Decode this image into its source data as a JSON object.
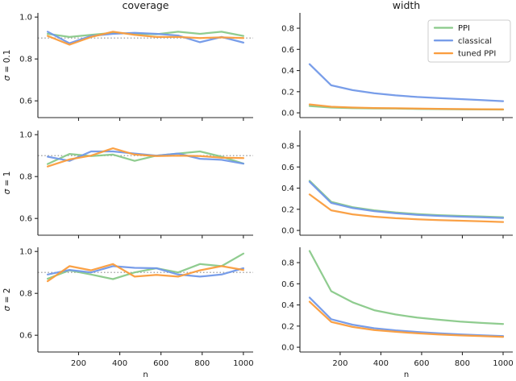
{
  "figure": {
    "background": "#ffffff",
    "text_color": "#1a1a1a",
    "spine_color": "#262626"
  },
  "chart_data": {
    "type": "line",
    "grid": false,
    "xlabel": "n",
    "x": [
      50,
      156,
      261,
      367,
      472,
      578,
      683,
      789,
      894,
      1000
    ],
    "x_ticks": [
      200,
      400,
      600,
      800,
      1000
    ],
    "xlim": [
      2.5,
      1047.5
    ],
    "legend": {
      "position": "upper right of width row 1 panel",
      "entries": [
        "PPI",
        "classical",
        "tuned PPI"
      ],
      "border_color": "#cccccc"
    },
    "series_order": [
      "PPI",
      "classical",
      "tuned PPI"
    ],
    "colors": {
      "PPI": "#89c989",
      "classical": "#7198e8",
      "tuned PPI": "#fa9c3c",
      "reference_line": "#8c8c8c"
    },
    "columns": [
      {
        "key": "coverage",
        "title": "coverage",
        "ylim": [
          0.52,
          1.02
        ],
        "yticks": [
          0.6,
          0.8,
          1.0
        ],
        "ref_line": 0.9
      },
      {
        "key": "width",
        "title": "width",
        "ylim": [
          -0.045,
          0.945
        ],
        "yticks": [
          0.0,
          0.2,
          0.4,
          0.6,
          0.8
        ],
        "ref_line": null
      }
    ],
    "rows": [
      {
        "label": "σ = 0.1",
        "coverage": {
          "PPI": [
            0.92,
            0.905,
            0.915,
            0.925,
            0.92,
            0.918,
            0.93,
            0.92,
            0.93,
            0.91
          ],
          "classical": [
            0.93,
            0.875,
            0.91,
            0.92,
            0.925,
            0.92,
            0.912,
            0.88,
            0.905,
            0.878
          ],
          "tuned PPI": [
            0.91,
            0.868,
            0.905,
            0.93,
            0.915,
            0.905,
            0.905,
            0.9,
            0.903,
            0.9
          ]
        },
        "width": {
          "PPI": [
            0.065,
            0.05,
            0.045,
            0.042,
            0.04,
            0.037,
            0.035,
            0.033,
            0.032,
            0.031
          ],
          "classical": [
            0.46,
            0.26,
            0.215,
            0.185,
            0.165,
            0.15,
            0.14,
            0.13,
            0.12,
            0.11
          ],
          "tuned PPI": [
            0.08,
            0.058,
            0.05,
            0.046,
            0.043,
            0.04,
            0.038,
            0.036,
            0.034,
            0.033
          ]
        }
      },
      {
        "label": "σ = 1",
        "coverage": {
          "PPI": [
            0.86,
            0.908,
            0.898,
            0.905,
            0.875,
            0.9,
            0.91,
            0.92,
            0.895,
            0.862
          ],
          "classical": [
            0.895,
            0.875,
            0.92,
            0.92,
            0.91,
            0.9,
            0.91,
            0.885,
            0.88,
            0.862
          ],
          "tuned PPI": [
            0.848,
            0.882,
            0.9,
            0.935,
            0.905,
            0.898,
            0.9,
            0.898,
            0.89,
            0.888
          ]
        },
        "width": {
          "PPI": [
            0.47,
            0.27,
            0.22,
            0.19,
            0.17,
            0.155,
            0.145,
            0.138,
            0.132,
            0.125
          ],
          "classical": [
            0.46,
            0.26,
            0.212,
            0.183,
            0.163,
            0.148,
            0.138,
            0.13,
            0.124,
            0.118
          ],
          "tuned PPI": [
            0.34,
            0.19,
            0.152,
            0.13,
            0.116,
            0.106,
            0.098,
            0.092,
            0.086,
            0.08
          ]
        }
      },
      {
        "label": "σ = 2",
        "coverage": {
          "PPI": [
            0.87,
            0.91,
            0.89,
            0.868,
            0.9,
            0.92,
            0.9,
            0.94,
            0.93,
            0.99
          ],
          "classical": [
            0.89,
            0.912,
            0.9,
            0.93,
            0.922,
            0.92,
            0.89,
            0.88,
            0.89,
            0.92
          ],
          "tuned PPI": [
            0.858,
            0.93,
            0.91,
            0.94,
            0.88,
            0.888,
            0.88,
            0.91,
            0.93,
            0.912
          ]
        },
        "width": {
          "PPI": [
            0.91,
            0.53,
            0.425,
            0.35,
            0.31,
            0.28,
            0.26,
            0.242,
            0.23,
            0.22
          ],
          "classical": [
            0.47,
            0.265,
            0.213,
            0.18,
            0.16,
            0.145,
            0.132,
            0.122,
            0.113,
            0.105
          ],
          "tuned PPI": [
            0.43,
            0.24,
            0.192,
            0.163,
            0.146,
            0.132,
            0.121,
            0.112,
            0.105,
            0.098
          ]
        }
      }
    ]
  }
}
